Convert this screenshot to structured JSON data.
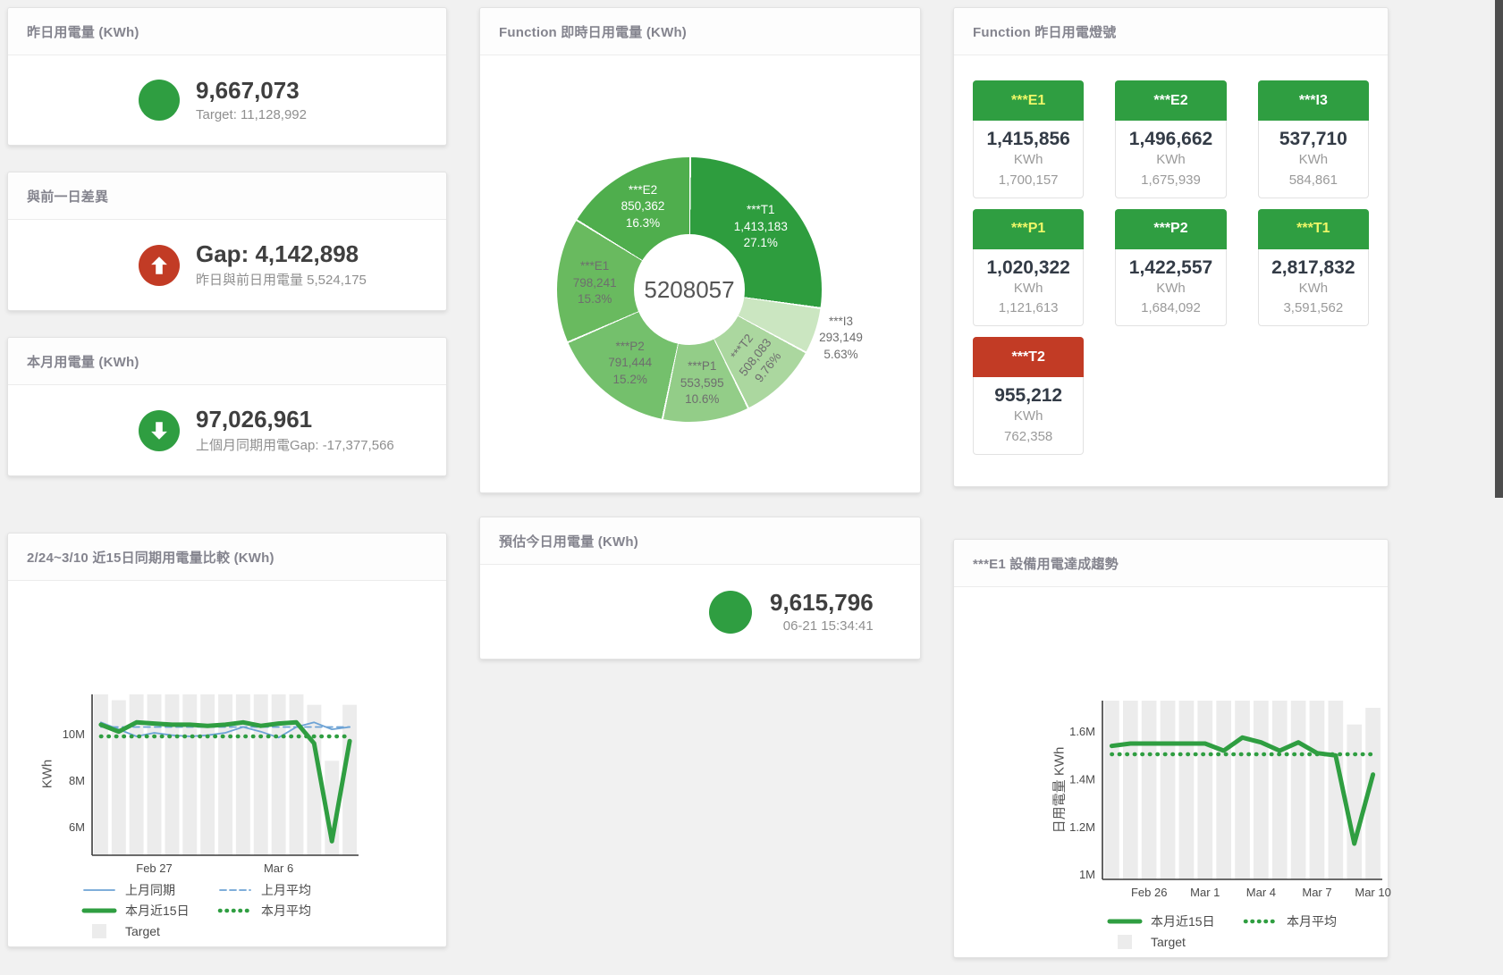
{
  "accent": {
    "green": "#2f9e41",
    "red": "#c23b25",
    "blue": "#6da3d5",
    "target_gray": "#ececec"
  },
  "panels": {
    "yesterday": {
      "title": "昨日用電量 (KWh)",
      "value": "9,667,073",
      "subtitle": "Target: 11,128,992",
      "indicator_color": "#2f9e41"
    },
    "gap": {
      "title": "與前一日差異",
      "value": "Gap: 4,142,898",
      "subtitle": "昨日與前日用電量 5,524,175",
      "indicator_color": "#c23b25"
    },
    "month": {
      "title": "本月用電量 (KWh)",
      "value": "97,026,961",
      "subtitle": "上個月同期用電Gap: -17,377,566",
      "indicator_color": "#2f9e41"
    },
    "estimate": {
      "title": "預估今日用電量 (KWh)",
      "value": "9,615,796",
      "subtitle": "06-21 15:34:41",
      "indicator_color": "#2f9e41"
    },
    "realtime": {
      "title": "Function 即時日用電量 (KWh)"
    },
    "lights": {
      "title": "Function 昨日用電燈號",
      "tiles": [
        {
          "name": "***E1",
          "value": "1,415,856",
          "unit": "KWh",
          "secondary": "1,700,157",
          "header_color": "#2f9e41",
          "header_text_color": "#eff768"
        },
        {
          "name": "***E2",
          "value": "1,496,662",
          "unit": "KWh",
          "secondary": "1,675,939",
          "header_color": "#2f9e41",
          "header_text_color": "#ffffff"
        },
        {
          "name": "***I3",
          "value": "537,710",
          "unit": "KWh",
          "secondary": "584,861",
          "header_color": "#2f9e41",
          "header_text_color": "#ffffff"
        },
        {
          "name": "***P1",
          "value": "1,020,322",
          "unit": "KWh",
          "secondary": "1,121,613",
          "header_color": "#2f9e41",
          "header_text_color": "#eff768"
        },
        {
          "name": "***P2",
          "value": "1,422,557",
          "unit": "KWh",
          "secondary": "1,684,092",
          "header_color": "#2f9e41",
          "header_text_color": "#ffffff"
        },
        {
          "name": "***T1",
          "value": "2,817,832",
          "unit": "KWh",
          "secondary": "3,591,562",
          "header_color": "#2f9e41",
          "header_text_color": "#eff768"
        },
        {
          "name": "***T2",
          "value": "955,212",
          "unit": "KWh",
          "secondary": "762,358",
          "header_color": "#c23b25",
          "header_text_color": "#ffffff"
        }
      ]
    },
    "compare": {
      "title": "2/24~3/10 近15日同期用電量比較 (KWh)"
    },
    "trend": {
      "title": "***E1 設備用電達成趨勢"
    }
  },
  "chart_data": [
    {
      "type": "pie",
      "title": "Function 即時日用電量 (KWh)",
      "center_total": "5208057",
      "segments": [
        {
          "name": "***T1",
          "value": 1413183,
          "value_text": "1,413,183",
          "pct": 27.1,
          "pct_text": "27.1%",
          "color": "#2e9d3e",
          "label_color": "#ffffff"
        },
        {
          "name": "***I3",
          "value": 293149,
          "value_text": "293,149",
          "pct": 5.63,
          "pct_text": "5.63%",
          "color": "#cbe6c1",
          "label_color": "#6e6e6e",
          "label_outside": true
        },
        {
          "name": "***T2",
          "value": 508083,
          "value_text": "508,083",
          "pct": 9.76,
          "pct_text": "9.76%",
          "color": "#abd79f",
          "label_color": "#6e6e6e"
        },
        {
          "name": "***P1",
          "value": 553595,
          "value_text": "553,595",
          "pct": 10.6,
          "pct_text": "10.6%",
          "color": "#93cd88",
          "label_color": "#6e6e6e"
        },
        {
          "name": "***P2",
          "value": 791444,
          "value_text": "791,444",
          "pct": 15.2,
          "pct_text": "15.2%",
          "color": "#74c06c",
          "label_color": "#6e6e6e"
        },
        {
          "name": "***E1",
          "value": 798241,
          "value_text": "798,241",
          "pct": 15.3,
          "pct_text": "15.3%",
          "color": "#69ba5f",
          "label_color": "#6e6e6e"
        },
        {
          "name": "***E2",
          "value": 850362,
          "value_text": "850,362",
          "pct": 16.3,
          "pct_text": "16.3%",
          "color": "#4fae4d",
          "label_color": "#ffffff"
        }
      ]
    },
    {
      "type": "line",
      "title": "2/24~3/10 近15日同期用電量比較 (KWh)",
      "ylabel": "KWh",
      "ylim": [
        4.8,
        11.7
      ],
      "yticks": [
        {
          "v": 6,
          "label": "6M"
        },
        {
          "v": 8,
          "label": "8M"
        },
        {
          "v": 10,
          "label": "10M"
        }
      ],
      "categories": [
        "2/24",
        "2/25",
        "2/26",
        "2/27",
        "2/28",
        "3/1",
        "3/2",
        "3/3",
        "3/4",
        "3/5",
        "3/6",
        "3/7",
        "3/8",
        "3/9",
        "3/10"
      ],
      "xticks": [
        {
          "i": 3,
          "label": "Feb 27"
        },
        {
          "i": 10,
          "label": "Mar 6"
        }
      ],
      "series": [
        {
          "name": "Target",
          "type": "bar",
          "color": "#ececec",
          "values": [
            11.7,
            11.45,
            11.7,
            11.7,
            11.7,
            11.7,
            11.7,
            11.7,
            11.7,
            11.7,
            11.7,
            11.7,
            11.25,
            8.85,
            11.25
          ]
        },
        {
          "name": "上月同期",
          "type": "line",
          "style": "solid",
          "color": "#6da3d5",
          "width": 1.8,
          "values": [
            10.5,
            10.2,
            9.9,
            10.05,
            9.95,
            9.9,
            9.95,
            10.05,
            10.3,
            10.1,
            9.85,
            10.3,
            10.5,
            10.2,
            10.3
          ]
        },
        {
          "name": "上月平均",
          "type": "line",
          "style": "dashed",
          "color": "#6da3d5",
          "width": 1.8,
          "values": 10.3
        },
        {
          "name": "本月近15日",
          "type": "line",
          "style": "solid",
          "color": "#2f9e41",
          "width": 5,
          "values": [
            10.4,
            10.1,
            10.5,
            10.45,
            10.4,
            10.4,
            10.35,
            10.4,
            10.5,
            10.35,
            10.45,
            10.5,
            9.6,
            5.4,
            9.7
          ]
        },
        {
          "name": "本月平均",
          "type": "line",
          "style": "dotted",
          "color": "#2f9e41",
          "width": 4.5,
          "values": 9.9
        }
      ],
      "legend_rows": [
        [
          "上月同期",
          "上月平均"
        ],
        [
          "本月近15日",
          "本月平均"
        ],
        [
          "Target"
        ]
      ]
    },
    {
      "type": "line",
      "title": "***E1 設備用電達成趨勢",
      "ylabel": "日用電量 KWh",
      "ylim": [
        0.98,
        1.73
      ],
      "yticks": [
        {
          "v": 1,
          "label": "1M"
        },
        {
          "v": 1.2,
          "label": "1.2M"
        },
        {
          "v": 1.4,
          "label": "1.4M"
        },
        {
          "v": 1.6,
          "label": "1.6M"
        }
      ],
      "categories": [
        "2/24",
        "2/25",
        "2/26",
        "2/27",
        "2/28",
        "3/1",
        "3/2",
        "3/3",
        "3/4",
        "3/5",
        "3/6",
        "3/7",
        "3/8",
        "3/9",
        "3/10"
      ],
      "xticks": [
        {
          "i": 2,
          "label": "Feb 26"
        },
        {
          "i": 5,
          "label": "Mar 1"
        },
        {
          "i": 8,
          "label": "Mar 4"
        },
        {
          "i": 11,
          "label": "Mar 7"
        },
        {
          "i": 14,
          "label": "Mar 10"
        }
      ],
      "series": [
        {
          "name": "Target",
          "type": "bar",
          "color": "#ececec",
          "values": [
            1.73,
            1.73,
            1.73,
            1.73,
            1.73,
            1.73,
            1.73,
            1.73,
            1.73,
            1.73,
            1.73,
            1.73,
            1.73,
            1.63,
            1.7
          ]
        },
        {
          "name": "本月近15日",
          "type": "line",
          "style": "solid",
          "color": "#2f9e41",
          "width": 5,
          "values": [
            1.54,
            1.55,
            1.55,
            1.55,
            1.55,
            1.55,
            1.52,
            1.575,
            1.555,
            1.52,
            1.555,
            1.51,
            1.5,
            1.13,
            1.42
          ]
        },
        {
          "name": "本月平均",
          "type": "line",
          "style": "dotted",
          "color": "#2f9e41",
          "width": 4.5,
          "values": 1.505
        }
      ],
      "legend_rows": [
        [
          "本月近15日",
          "本月平均"
        ],
        [
          "Target"
        ]
      ]
    }
  ]
}
